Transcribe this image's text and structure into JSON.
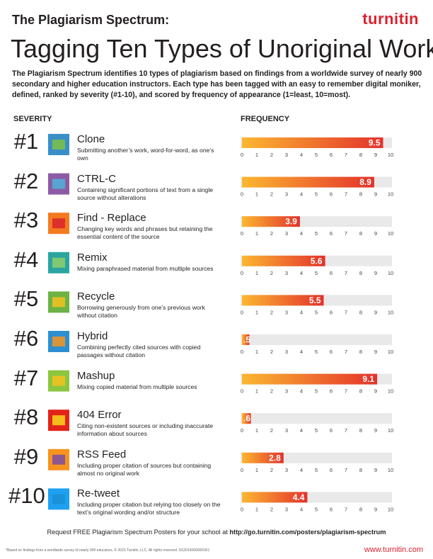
{
  "brand": "turnitin",
  "header": {
    "title": "The Plagiarism Spectrum:",
    "subtitle": "Tagging Ten Types of Unoriginal Work",
    "intro": "The Plagiarism Spectrum identifies 10 types of plagiarism based on findings from a worldwide survey of nearly 900 secondary and higher education instructors. Each type has been tagged with an easy to remember digital moniker, defined, ranked by severity (#1-10), and scored by frequency of appearance (1=least, 10=most)."
  },
  "column_headers": {
    "severity": "SEVERITY",
    "frequency": "FREQUENCY"
  },
  "items": [
    {
      "rank": "#1",
      "description": "Submitting another’s work, word-for-word, as one’s own"
    },
    {
      "rank": "#2",
      "description": "Containing significant portions of text from a single source without alterations"
    },
    {
      "rank": "#3",
      "description": "Changing key words and phrases but retaining the essential content of the source"
    },
    {
      "rank": "#4",
      "description": "Mixing paraphrased material from multiple sources"
    },
    {
      "rank": "#5",
      "description": "Borrowing generously from one’s previous work without citation"
    },
    {
      "rank": "#6",
      "description": "Combining perfectly cited sources with copied passages without citation"
    },
    {
      "rank": "#7",
      "description": "Mixing copied material from multiple sources"
    },
    {
      "rank": "#8",
      "description": "Citing non-existent sources or including inaccurate information about sources"
    },
    {
      "rank": "#9",
      "description": "Including proper citation of sources but containing almost no original work"
    },
    {
      "rank": "#10",
      "description": "Including proper citation but relying too closely on the text’s original wording and/or structure"
    }
  ],
  "chart_data": {
    "type": "bar",
    "orientation": "horizontal",
    "categories": [
      "Clone",
      "CTRL-C",
      "Find - Replace",
      "Remix",
      "Recycle",
      "Hybrid",
      "Mashup",
      "404 Error",
      "RSS Feed",
      "Re-tweet"
    ],
    "values": [
      9.5,
      8.9,
      3.9,
      5.6,
      5.5,
      0.5,
      9.1,
      0.6,
      2.8,
      4.4
    ],
    "value_labels": [
      "9.5",
      "8.9",
      "3.9",
      "5.6",
      "5.5",
      ".5",
      "9.1",
      ".6",
      "2.8",
      "4.4"
    ],
    "xlim": [
      0,
      10
    ],
    "xticks": [
      0,
      1,
      2,
      3,
      4,
      5,
      6,
      7,
      8,
      9,
      10
    ]
  },
  "footer": {
    "request": "Request FREE Plagiarism Spectrum Posters for your school at",
    "url": "http://go.turnitin.com/posters/plagiarism-spectrum",
    "note": "*Based on findings from a worldwide survey of nearly 900 educators. © 2015 Turnitin, LLC. All rights reserved. SS20150600001R1",
    "website": "www.turnitin.com"
  }
}
